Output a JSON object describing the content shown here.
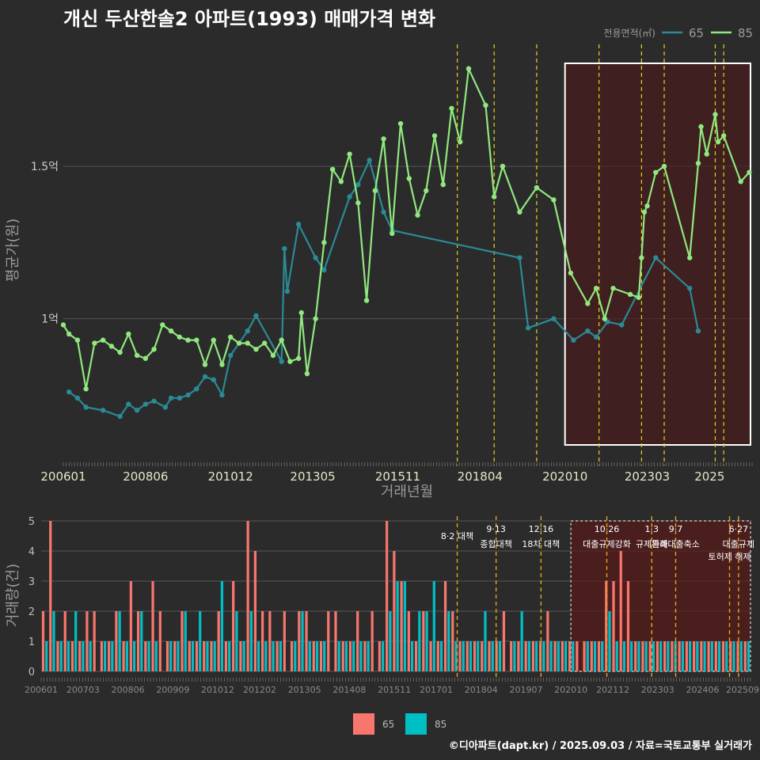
{
  "title": "개신 두산한솔2 아파트(1993) 매매가격 변화",
  "footer": "©디아파트(dapt.kr) / 2025.09.03 / 자료=국토교통부 실거래가",
  "colors": {
    "s65": "#2a8a96",
    "s85": "#90e87e",
    "v65": "#00bfc4",
    "v85": "#f8766d",
    "vline": "#e6d31a",
    "vline2": "#e0a41a"
  },
  "chart_data": [
    {
      "type": "line",
      "title": "개신 두산한솔2 아파트(1993) 매매가격 변화",
      "xlabel": "거래년월",
      "ylabel": "평균가(원)",
      "x_tick_labels": [
        "200601",
        "200806",
        "201012",
        "201305",
        "201511",
        "201804",
        "202010",
        "202303",
        "2025"
      ],
      "y_tick_labels": [
        "1억",
        "1.5억"
      ],
      "y_ticks": [
        1.0,
        1.5
      ],
      "ylim": [
        0.55,
        1.9
      ],
      "legend_title": "전용면적(㎡)",
      "legend_position": "top-right",
      "series": [
        {
          "name": "65",
          "points": [
            [
              "2006-03",
              0.76
            ],
            [
              "2006-06",
              0.74
            ],
            [
              "2006-09",
              0.71
            ],
            [
              "2007-03",
              0.7
            ],
            [
              "2007-09",
              0.68
            ],
            [
              "2007-12",
              0.72
            ],
            [
              "2008-03",
              0.7
            ],
            [
              "2008-06",
              0.72
            ],
            [
              "2008-09",
              0.73
            ],
            [
              "2009-01",
              0.71
            ],
            [
              "2009-03",
              0.74
            ],
            [
              "2009-06",
              0.74
            ],
            [
              "2009-09",
              0.75
            ],
            [
              "2009-12",
              0.77
            ],
            [
              "2010-03",
              0.81
            ],
            [
              "2010-06",
              0.8
            ],
            [
              "2010-09",
              0.75
            ],
            [
              "2010-12",
              0.88
            ],
            [
              "2011-03",
              0.92
            ],
            [
              "2011-06",
              0.96
            ],
            [
              "2011-09",
              1.01
            ],
            [
              "2012-06",
              0.86
            ],
            [
              "2012-07",
              1.23
            ],
            [
              "2012-08",
              1.09
            ],
            [
              "2012-12",
              1.31
            ],
            [
              "2013-06",
              1.2
            ],
            [
              "2013-09",
              1.16
            ],
            [
              "2014-06",
              1.4
            ],
            [
              "2014-09",
              1.44
            ],
            [
              "2015-01",
              1.52
            ],
            [
              "2015-06",
              1.35
            ],
            [
              "2015-09",
              1.29
            ],
            [
              "2019-06",
              1.2
            ],
            [
              "2019-09",
              0.97
            ],
            [
              "2020-06",
              1.0
            ],
            [
              "2021-01",
              0.93
            ],
            [
              "2021-06",
              0.96
            ],
            [
              "2021-09",
              0.94
            ],
            [
              "2022-01",
              0.99
            ],
            [
              "2022-06",
              0.98
            ],
            [
              "2023-06",
              1.2
            ],
            [
              "2024-06",
              1.1
            ],
            [
              "2024-09",
              0.96
            ]
          ]
        },
        {
          "name": "85",
          "points": [
            [
              "2006-01",
              0.98
            ],
            [
              "2006-03",
              0.95
            ],
            [
              "2006-06",
              0.93
            ],
            [
              "2006-09",
              0.77
            ],
            [
              "2006-12",
              0.92
            ],
            [
              "2007-03",
              0.93
            ],
            [
              "2007-06",
              0.91
            ],
            [
              "2007-09",
              0.89
            ],
            [
              "2007-12",
              0.95
            ],
            [
              "2008-03",
              0.88
            ],
            [
              "2008-06",
              0.87
            ],
            [
              "2008-09",
              0.9
            ],
            [
              "2008-12",
              0.98
            ],
            [
              "2009-03",
              0.96
            ],
            [
              "2009-06",
              0.94
            ],
            [
              "2009-09",
              0.93
            ],
            [
              "2009-12",
              0.93
            ],
            [
              "2010-03",
              0.85
            ],
            [
              "2010-06",
              0.93
            ],
            [
              "2010-09",
              0.85
            ],
            [
              "2010-12",
              0.94
            ],
            [
              "2011-03",
              0.92
            ],
            [
              "2011-06",
              0.92
            ],
            [
              "2011-09",
              0.9
            ],
            [
              "2011-12",
              0.92
            ],
            [
              "2012-03",
              0.88
            ],
            [
              "2012-06",
              0.93
            ],
            [
              "2012-09",
              0.86
            ],
            [
              "2012-12",
              0.87
            ],
            [
              "2013-01",
              1.02
            ],
            [
              "2013-03",
              0.82
            ],
            [
              "2013-06",
              1.0
            ],
            [
              "2013-09",
              1.25
            ],
            [
              "2013-12",
              1.49
            ],
            [
              "2014-03",
              1.45
            ],
            [
              "2014-06",
              1.54
            ],
            [
              "2014-09",
              1.38
            ],
            [
              "2014-12",
              1.06
            ],
            [
              "2015-03",
              1.42
            ],
            [
              "2015-06",
              1.59
            ],
            [
              "2015-09",
              1.28
            ],
            [
              "2015-12",
              1.64
            ],
            [
              "2016-03",
              1.46
            ],
            [
              "2016-06",
              1.34
            ],
            [
              "2016-09",
              1.42
            ],
            [
              "2016-12",
              1.6
            ],
            [
              "2017-03",
              1.44
            ],
            [
              "2017-06",
              1.69
            ],
            [
              "2017-09",
              1.58
            ],
            [
              "2017-12",
              1.82
            ],
            [
              "2018-06",
              1.7
            ],
            [
              "2018-09",
              1.4
            ],
            [
              "2018-12",
              1.5
            ],
            [
              "2019-06",
              1.35
            ],
            [
              "2019-12",
              1.43
            ],
            [
              "2020-06",
              1.39
            ],
            [
              "2020-12",
              1.15
            ],
            [
              "2021-06",
              1.05
            ],
            [
              "2021-09",
              1.1
            ],
            [
              "2021-12",
              1.0
            ],
            [
              "2022-03",
              1.1
            ],
            [
              "2022-09",
              1.08
            ],
            [
              "2022-12",
              1.07
            ],
            [
              "2023-01",
              1.2
            ],
            [
              "2023-02",
              1.35
            ],
            [
              "2023-03",
              1.37
            ],
            [
              "2023-06",
              1.48
            ],
            [
              "2023-09",
              1.5
            ],
            [
              "2024-06",
              1.2
            ],
            [
              "2024-09",
              1.51
            ],
            [
              "2024-10",
              1.63
            ],
            [
              "2024-12",
              1.54
            ],
            [
              "2025-03",
              1.67
            ],
            [
              "2025-04",
              1.58
            ],
            [
              "2025-06",
              1.6
            ],
            [
              "2025-12",
              1.45
            ],
            [
              "2026-03",
              1.48
            ]
          ]
        }
      ],
      "highlight_range": [
        "202010",
        "2025"
      ]
    },
    {
      "type": "bar",
      "ylabel": "거래량(건)",
      "y_tick_labels": [
        "0",
        "1",
        "2",
        "3",
        "4",
        "5"
      ],
      "ylim": [
        0,
        5
      ],
      "x_tick_labels": [
        "200601",
        "200703",
        "200806",
        "200909",
        "201012",
        "201202",
        "201305",
        "201408",
        "201511",
        "201701",
        "201804",
        "201907",
        "202010",
        "202112",
        "202303",
        "202406",
        "202509"
      ],
      "legend_position": "bottom",
      "series": [
        {
          "name": "65",
          "values": [
            1,
            2,
            1,
            1,
            2,
            1,
            1,
            0,
            1,
            1,
            2,
            1,
            1,
            2,
            1,
            1,
            0,
            1,
            1,
            2,
            1,
            2,
            1,
            1,
            3,
            1,
            2,
            1,
            2,
            1,
            1,
            1,
            1,
            0,
            1,
            2,
            1,
            1,
            1,
            0,
            1,
            1,
            1,
            1,
            1,
            0,
            1,
            2,
            3,
            3,
            1,
            2,
            2,
            3,
            1,
            2,
            1,
            1,
            1,
            1,
            2,
            1,
            1,
            0,
            1,
            2,
            1,
            1,
            1,
            1,
            1,
            1,
            1,
            0,
            1,
            1,
            1,
            2,
            1,
            1,
            1,
            1,
            1,
            1,
            1,
            1,
            1,
            1,
            1,
            1,
            1,
            1,
            1,
            1,
            1,
            1,
            1
          ]
        },
        {
          "name": "85",
          "values": [
            2,
            5,
            1,
            2,
            1,
            1,
            2,
            2,
            1,
            1,
            2,
            1,
            3,
            2,
            1,
            3,
            2,
            1,
            1,
            2,
            1,
            1,
            1,
            1,
            2,
            1,
            3,
            1,
            5,
            4,
            2,
            2,
            1,
            2,
            1,
            2,
            2,
            1,
            1,
            2,
            2,
            1,
            1,
            2,
            1,
            2,
            1,
            5,
            4,
            3,
            2,
            1,
            2,
            1,
            1,
            3,
            2,
            1,
            1,
            1,
            1,
            1,
            1,
            2,
            1,
            1,
            1,
            1,
            1,
            2,
            1,
            1,
            1,
            1,
            1,
            1,
            1,
            3,
            3,
            4,
            3,
            1,
            1,
            1,
            1,
            1,
            1,
            1,
            1,
            1,
            1,
            1,
            1,
            1,
            1,
            1,
            1
          ]
        }
      ],
      "annotations": [
        {
          "label": "8·2 대책",
          "date": "201708"
        },
        {
          "label": "9·13",
          "label2": "종합대책",
          "date": "201809"
        },
        {
          "label": "12·16",
          "label2": "18차 대책",
          "date": "201912"
        },
        {
          "label": "10·26",
          "label2": "대출규제강화",
          "date": "202110"
        },
        {
          "label": "1·3",
          "label2": "규제완화",
          "date": "202301"
        },
        {
          "label": "9·7",
          "label2": "특례대출축소",
          "date": "202309"
        },
        {
          "label": "토허제 해제",
          "date": "202503"
        },
        {
          "label": "6·27",
          "label2": "대출규제",
          "date": "202506"
        }
      ],
      "highlight_range": [
        "202010",
        "202509"
      ]
    }
  ]
}
